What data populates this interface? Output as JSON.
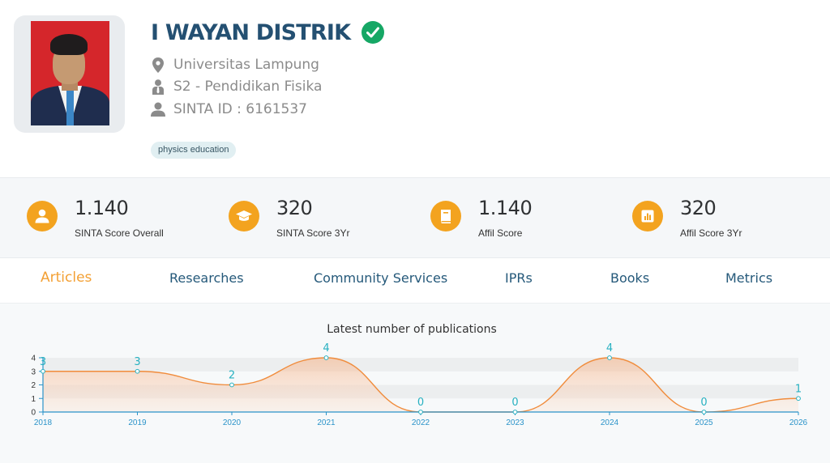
{
  "profile": {
    "name": "I WAYAN DISTRIK",
    "affiliation": "Universitas Lampung",
    "program": "S2 - Pendidikan Fisika",
    "sinta_id": "SINTA ID : 6161537",
    "tags": [
      "physics education"
    ]
  },
  "scores": [
    {
      "value": "1.140",
      "label": "SINTA Score Overall",
      "icon": "user-icon"
    },
    {
      "value": "320",
      "label": "SINTA Score 3Yr",
      "icon": "graduation-cap-icon"
    },
    {
      "value": "1.140",
      "label": "Affil Score",
      "icon": "book-icon"
    },
    {
      "value": "320",
      "label": "Affil Score 3Yr",
      "icon": "bar-chart-icon"
    }
  ],
  "tabs": [
    {
      "label": "Articles",
      "active": true
    },
    {
      "label": "Researches",
      "active": false
    },
    {
      "label": "Community Services",
      "active": false
    },
    {
      "label": "IPRs",
      "active": false
    },
    {
      "label": "Books",
      "active": false
    },
    {
      "label": "Metrics",
      "active": false
    }
  ],
  "colors": {
    "name": "#245072",
    "verified": "#16a765",
    "accent": "#f3a31f",
    "tab_active": "#f3a034",
    "tab": "#25597a",
    "line": "#f08c3c",
    "axis": "#2a93c9",
    "data_label": "#27b1c1"
  },
  "chart_data": {
    "type": "area",
    "title": "Latest number of publications",
    "x": [
      "2018",
      "2019",
      "2020",
      "2021",
      "2022",
      "2023",
      "2024",
      "2025",
      "2026"
    ],
    "values": [
      3,
      3,
      2,
      4,
      0,
      0,
      4,
      0,
      1
    ],
    "yticks": [
      "0",
      "1",
      "2",
      "3",
      "4"
    ],
    "ylim": [
      0,
      4
    ],
    "data_labels": true,
    "grid": true
  }
}
